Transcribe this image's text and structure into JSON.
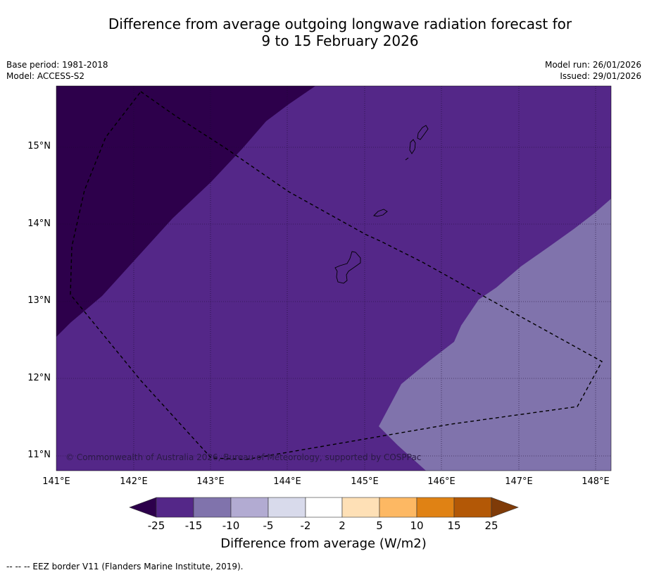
{
  "title": {
    "line1": "Difference from average outgoing longwave radiation forecast for",
    "line2": "9 to 15 February 2026"
  },
  "meta": {
    "base_period": "Base period: 1981-2018",
    "model": "Model: ACCESS-S2",
    "model_run": "Model run: 26/01/2026",
    "issued": "Issued: 29/01/2026"
  },
  "map": {
    "lat_labels": [
      "15°N",
      "14°N",
      "13°N",
      "12°N",
      "11°N"
    ],
    "lon_labels": [
      "141°E",
      "142°E",
      "143°E",
      "144°E",
      "145°E",
      "146°E",
      "147°E",
      "148°E"
    ],
    "copyright": "© Commonwealth of Australia 2026, Bureau of Meteorology, supported by COSPPac",
    "colors": {
      "below_25": "#2d004b",
      "minus25_15": "#542788",
      "minus15_10": "#8073ac",
      "minus10_5": "#b2abd2",
      "minus5_2": "#d8daeb",
      "minus2_2": "#ffffff",
      "p2_5": "#fee0b6",
      "p5_10": "#fdb863",
      "p10_15": "#e08214",
      "p15_25": "#b35806",
      "above_25": "#7f3b08"
    }
  },
  "colorbar": {
    "ticks": [
      "-25",
      "-15",
      "-10",
      "-5",
      "-2",
      "2",
      "5",
      "10",
      "15",
      "25"
    ],
    "label": "Difference from average (W/m2)"
  },
  "footer": {
    "legend": "--  --  -- EEZ border V11 (Flanders Marine Institute, 2019)."
  }
}
